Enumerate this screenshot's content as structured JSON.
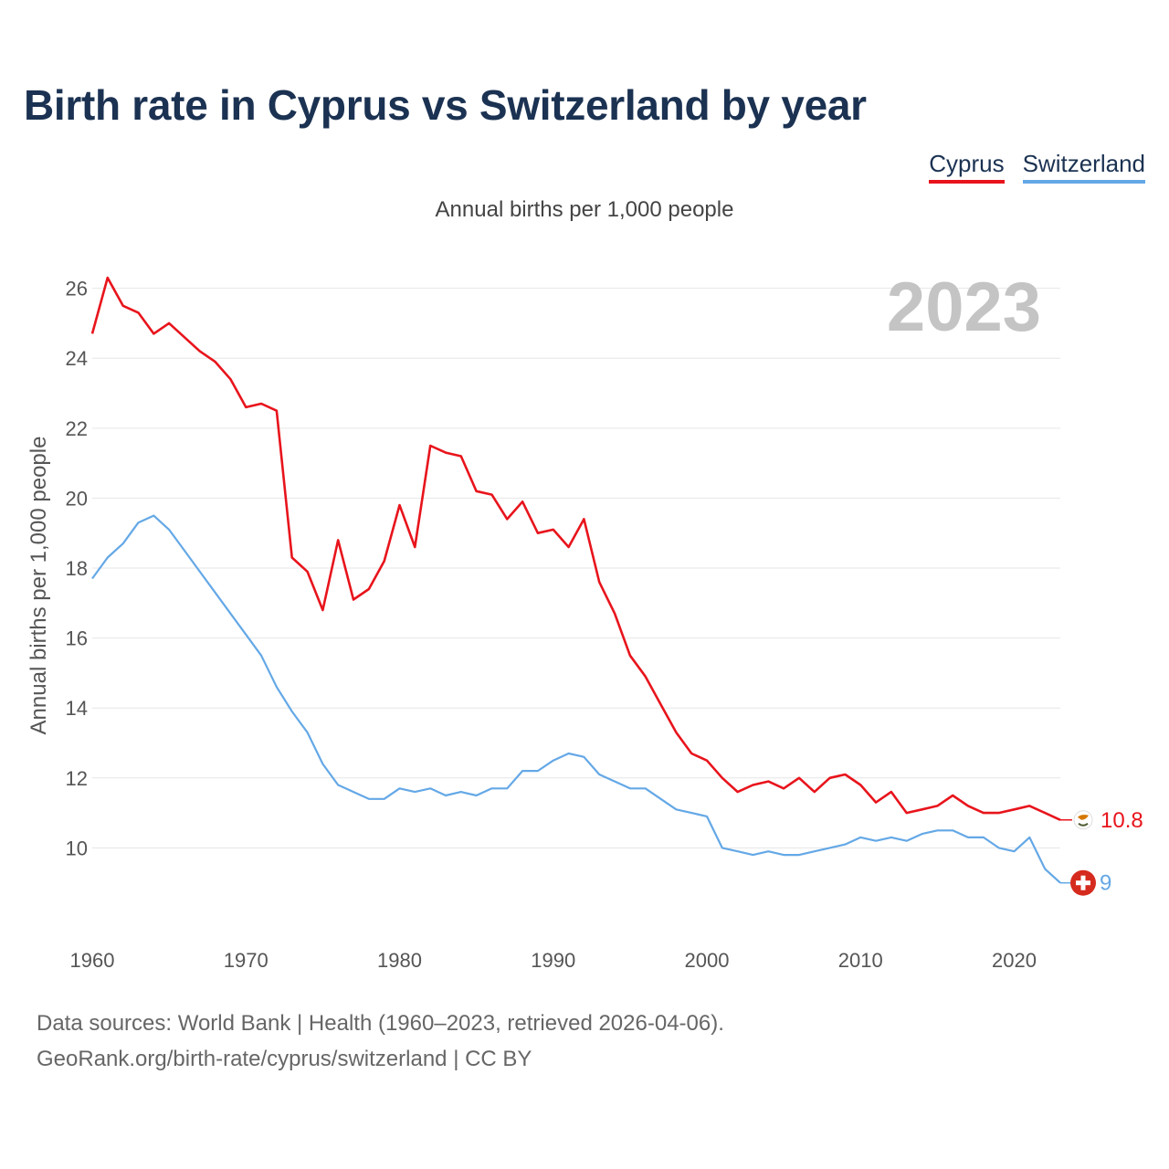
{
  "title": "Birth rate in Cyprus vs Switzerland by year",
  "subtitle": "Annual births per 1,000 people",
  "footer": {
    "line1": "Data sources: World Bank | Health (1960–2023, retrieved 2026-04-06).",
    "line2": "GeoRank.org/birth-rate/cyprus/switzerland | CC BY"
  },
  "chart_data": {
    "type": "line",
    "title": "Birth rate in Cyprus vs Switzerland by year",
    "ylabel": "Annual births per 1,000 people",
    "xlabel": "",
    "xlim": [
      1960,
      2023
    ],
    "ylim": [
      8,
      26.8
    ],
    "yticks": [
      10,
      12,
      14,
      16,
      18,
      20,
      22,
      24,
      26
    ],
    "xticks": [
      1960,
      1970,
      1980,
      1990,
      2000,
      2010,
      2020
    ],
    "grid": true,
    "legend": "top-right",
    "highlight_year": "2023",
    "x": [
      1960,
      1961,
      1962,
      1963,
      1964,
      1965,
      1966,
      1967,
      1968,
      1969,
      1970,
      1971,
      1972,
      1973,
      1974,
      1975,
      1976,
      1977,
      1978,
      1979,
      1980,
      1981,
      1982,
      1983,
      1984,
      1985,
      1986,
      1987,
      1988,
      1989,
      1990,
      1991,
      1992,
      1993,
      1994,
      1995,
      1996,
      1997,
      1998,
      1999,
      2000,
      2001,
      2002,
      2003,
      2004,
      2005,
      2006,
      2007,
      2008,
      2009,
      2010,
      2011,
      2012,
      2013,
      2014,
      2015,
      2016,
      2017,
      2018,
      2019,
      2020,
      2021,
      2022,
      2023
    ],
    "series": [
      {
        "name": "Cyprus",
        "color": "#e8141c",
        "end_label": "10.8",
        "values": [
          24.7,
          26.3,
          25.5,
          25.3,
          24.7,
          25.0,
          24.6,
          24.2,
          23.9,
          23.4,
          22.6,
          22.7,
          22.5,
          18.3,
          17.9,
          16.8,
          18.8,
          17.1,
          17.4,
          18.2,
          19.8,
          18.6,
          21.5,
          21.3,
          21.2,
          20.2,
          20.1,
          19.4,
          19.9,
          19.0,
          19.1,
          18.6,
          19.4,
          17.6,
          16.7,
          15.5,
          14.9,
          14.1,
          13.3,
          12.7,
          12.5,
          12.0,
          11.6,
          11.8,
          11.9,
          11.7,
          12.0,
          11.6,
          12.0,
          12.1,
          11.8,
          11.3,
          11.6,
          11.0,
          11.1,
          11.2,
          11.5,
          11.2,
          11.0,
          11.0,
          11.1,
          11.2,
          11.0,
          10.8
        ]
      },
      {
        "name": "Switzerland",
        "color": "#64a8e6",
        "end_label": "9",
        "values": [
          17.7,
          18.3,
          18.7,
          19.3,
          19.5,
          19.1,
          18.5,
          17.9,
          17.3,
          16.7,
          16.1,
          15.5,
          14.6,
          13.9,
          13.3,
          12.4,
          11.8,
          11.6,
          11.4,
          11.4,
          11.7,
          11.6,
          11.7,
          11.5,
          11.6,
          11.5,
          11.7,
          11.7,
          12.2,
          12.2,
          12.5,
          12.7,
          12.6,
          12.1,
          11.9,
          11.7,
          11.7,
          11.4,
          11.1,
          11.0,
          10.9,
          10.0,
          9.9,
          9.8,
          9.9,
          9.8,
          9.8,
          9.9,
          10.0,
          10.1,
          10.3,
          10.2,
          10.3,
          10.2,
          10.4,
          10.5,
          10.5,
          10.3,
          10.3,
          10.0,
          9.9,
          10.3,
          9.4,
          9.0
        ]
      }
    ]
  },
  "icons": {
    "cyprus": "cyprus-flag-icon",
    "switzerland": "switzerland-flag-icon"
  }
}
